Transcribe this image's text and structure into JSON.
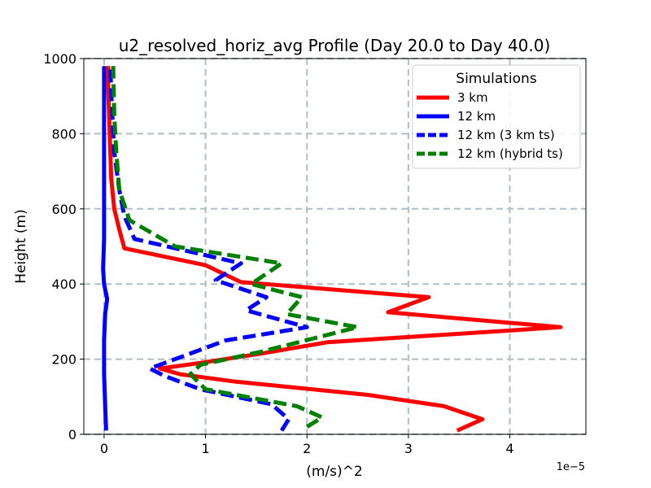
{
  "chart_data": {
    "type": "line",
    "title": "u2_resolved_horiz_avg Profile (Day 20.0 to Day 40.0)",
    "xlabel": "(m/s)^2",
    "ylabel": "Height (m)",
    "x_offset_label": "1e−5",
    "xlim": [
      -0.2,
      4.75
    ],
    "ylim": [
      0,
      1000
    ],
    "xticks": [
      0,
      1,
      2,
      3,
      4
    ],
    "xtick_labels": [
      "0",
      "1",
      "2",
      "3",
      "4"
    ],
    "yticks": [
      0,
      200,
      400,
      600,
      800,
      1000
    ],
    "ytick_labels": [
      "0",
      "200",
      "400",
      "600",
      "800",
      "1000"
    ],
    "grid": true,
    "legend": {
      "title": "Simulations",
      "location": "upper right"
    },
    "series": [
      {
        "name": "3 km",
        "color": "#ff0000",
        "style": "solid",
        "points": [
          [
            3.48,
            10
          ],
          [
            3.73,
            40
          ],
          [
            3.35,
            75
          ],
          [
            2.6,
            105
          ],
          [
            1.3,
            140
          ],
          [
            0.75,
            160
          ],
          [
            0.55,
            175
          ],
          [
            0.95,
            190
          ],
          [
            1.55,
            215
          ],
          [
            2.2,
            245
          ],
          [
            4.5,
            285
          ],
          [
            2.8,
            325
          ],
          [
            3.2,
            365
          ],
          [
            1.35,
            405
          ],
          [
            1.0,
            450
          ],
          [
            0.2,
            495
          ],
          [
            0.15,
            545
          ],
          [
            0.1,
            600
          ],
          [
            0.07,
            680
          ],
          [
            0.06,
            760
          ],
          [
            0.05,
            840
          ],
          [
            0.04,
            920
          ],
          [
            0.04,
            980
          ]
        ]
      },
      {
        "name": "12 km",
        "color": "#0000ff",
        "style": "solid",
        "points": [
          [
            0.02,
            10
          ],
          [
            0.01,
            80
          ],
          [
            0.0,
            160
          ],
          [
            0.0,
            250
          ],
          [
            0.01,
            320
          ],
          [
            0.03,
            360
          ],
          [
            0.0,
            400
          ],
          [
            -0.01,
            440
          ],
          [
            0.0,
            520
          ],
          [
            0.0,
            600
          ],
          [
            0.0,
            700
          ],
          [
            0.0,
            800
          ],
          [
            0.0,
            900
          ],
          [
            0.0,
            980
          ]
        ]
      },
      {
        "name": "12 km (3 km ts)",
        "color": "#0000ff",
        "style": "dashed",
        "points": [
          [
            1.75,
            10
          ],
          [
            1.82,
            40
          ],
          [
            1.65,
            80
          ],
          [
            0.95,
            120
          ],
          [
            0.6,
            155
          ],
          [
            0.45,
            175
          ],
          [
            1.2,
            250
          ],
          [
            2.0,
            285
          ],
          [
            1.4,
            330
          ],
          [
            1.6,
            365
          ],
          [
            1.1,
            410
          ],
          [
            1.35,
            455
          ],
          [
            0.3,
            520
          ],
          [
            0.2,
            580
          ],
          [
            0.15,
            650
          ],
          [
            0.1,
            750
          ],
          [
            0.08,
            850
          ],
          [
            0.06,
            980
          ]
        ]
      },
      {
        "name": "12 km (hybrid ts)",
        "color": "#008000",
        "style": "dashed",
        "points": [
          [
            2.0,
            20
          ],
          [
            2.15,
            45
          ],
          [
            1.9,
            75
          ],
          [
            1.0,
            120
          ],
          [
            0.85,
            160
          ],
          [
            0.95,
            185
          ],
          [
            1.55,
            220
          ],
          [
            2.5,
            285
          ],
          [
            1.8,
            320
          ],
          [
            1.95,
            365
          ],
          [
            1.45,
            400
          ],
          [
            1.75,
            455
          ],
          [
            0.7,
            500
          ],
          [
            0.25,
            570
          ],
          [
            0.15,
            650
          ],
          [
            0.12,
            750
          ],
          [
            0.1,
            850
          ],
          [
            0.09,
            980
          ]
        ]
      }
    ]
  }
}
